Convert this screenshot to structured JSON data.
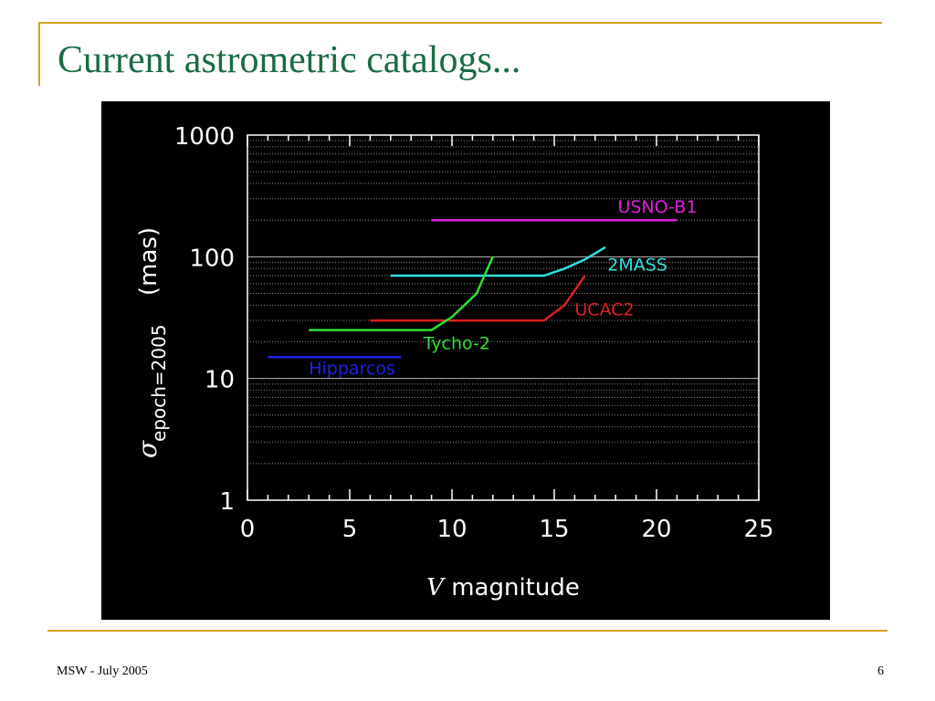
{
  "slide": {
    "title": "Current astrometric catalogs...",
    "footer_left": "MSW - July 2005",
    "page_number": "6"
  },
  "colors": {
    "title": "#1a6b44",
    "accent_rule": "#d3a21e",
    "chart_background": "#000000"
  },
  "chart_data": {
    "type": "line",
    "title": "",
    "xlabel": "V magnitude",
    "xlabel_italic_part": "V",
    "xlabel_rest": " magnitude",
    "ylabel_symbol": "σ",
    "ylabel_subscript": "epoch=2005",
    "ylabel_unit": "(mas)",
    "xlim": [
      0,
      25
    ],
    "ylim": [
      1,
      1000
    ],
    "y_scale": "log",
    "grid": true,
    "x_ticks": [
      0,
      5,
      10,
      15,
      20,
      25
    ],
    "x_tick_labels": [
      "0",
      "5",
      "10",
      "15",
      "20",
      "25"
    ],
    "y_ticks": [
      1,
      10,
      100,
      1000
    ],
    "y_tick_labels": [
      "1",
      "10",
      "100",
      "1000"
    ],
    "series": [
      {
        "name": "USNO-B1",
        "color": "#e020e0",
        "points": [
          [
            9,
            200
          ],
          [
            21,
            200
          ]
        ],
        "label_at": [
          18.1,
          230
        ]
      },
      {
        "name": "2MASS",
        "color": "#30e0e0",
        "points": [
          [
            7,
            70
          ],
          [
            14.5,
            70
          ],
          [
            15.5,
            80
          ],
          [
            16.5,
            95
          ],
          [
            17.5,
            120
          ]
        ],
        "label_at": [
          17.6,
          77
        ]
      },
      {
        "name": "UCAC2",
        "color": "#e02020",
        "points": [
          [
            6,
            30
          ],
          [
            14.5,
            30
          ],
          [
            15.5,
            40
          ],
          [
            16.5,
            70
          ]
        ],
        "label_at": [
          16.0,
          33
        ]
      },
      {
        "name": "Tycho-2",
        "color": "#30e030",
        "points": [
          [
            3,
            25
          ],
          [
            9,
            25
          ],
          [
            10,
            32
          ],
          [
            11.2,
            50
          ],
          [
            12,
            100
          ]
        ],
        "label_at": [
          8.6,
          17.5
        ]
      },
      {
        "name": "Hipparcos",
        "color": "#2020e0",
        "points": [
          [
            1,
            15
          ],
          [
            7.5,
            15
          ]
        ],
        "label_at": [
          3.0,
          10.8
        ]
      }
    ]
  }
}
